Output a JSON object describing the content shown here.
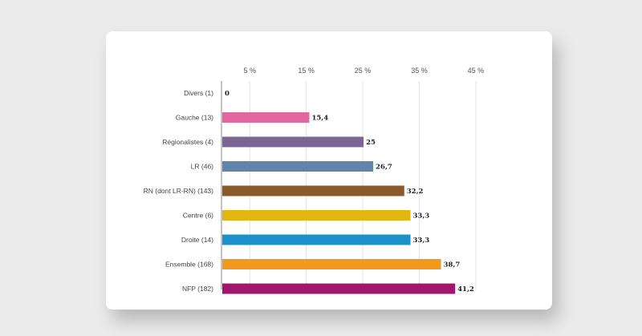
{
  "chart_data": {
    "type": "bar",
    "orientation": "horizontal",
    "title": "",
    "xlabel": "",
    "ylabel": "",
    "xlim": [
      0,
      47
    ],
    "x_ticks": [
      5,
      15,
      25,
      35,
      45
    ],
    "x_tick_labels": [
      "5 %",
      "15 %",
      "25 %",
      "35 %",
      "45 %"
    ],
    "grid": true,
    "categories": [
      "Divers (1)",
      "Gauche (13)",
      "Régionalistes (4)",
      "LR (46)",
      "RN (dont LR-RN) (143)",
      "Centre (6)",
      "Droite (14)",
      "Ensemble (168)",
      "NFP (182)"
    ],
    "values": [
      0,
      15.4,
      25,
      26.7,
      32.2,
      33.3,
      33.3,
      38.7,
      41.2
    ],
    "value_labels": [
      "0",
      "15,4",
      "25",
      "26,7",
      "32,2",
      "33,3",
      "33,3",
      "38,7",
      "41,2"
    ],
    "colors": [
      "#9e9e9e",
      "#e2679f",
      "#7b6593",
      "#5f86a8",
      "#8b5a2b",
      "#e1b610",
      "#1a91c9",
      "#f39a1e",
      "#a2166e"
    ]
  }
}
